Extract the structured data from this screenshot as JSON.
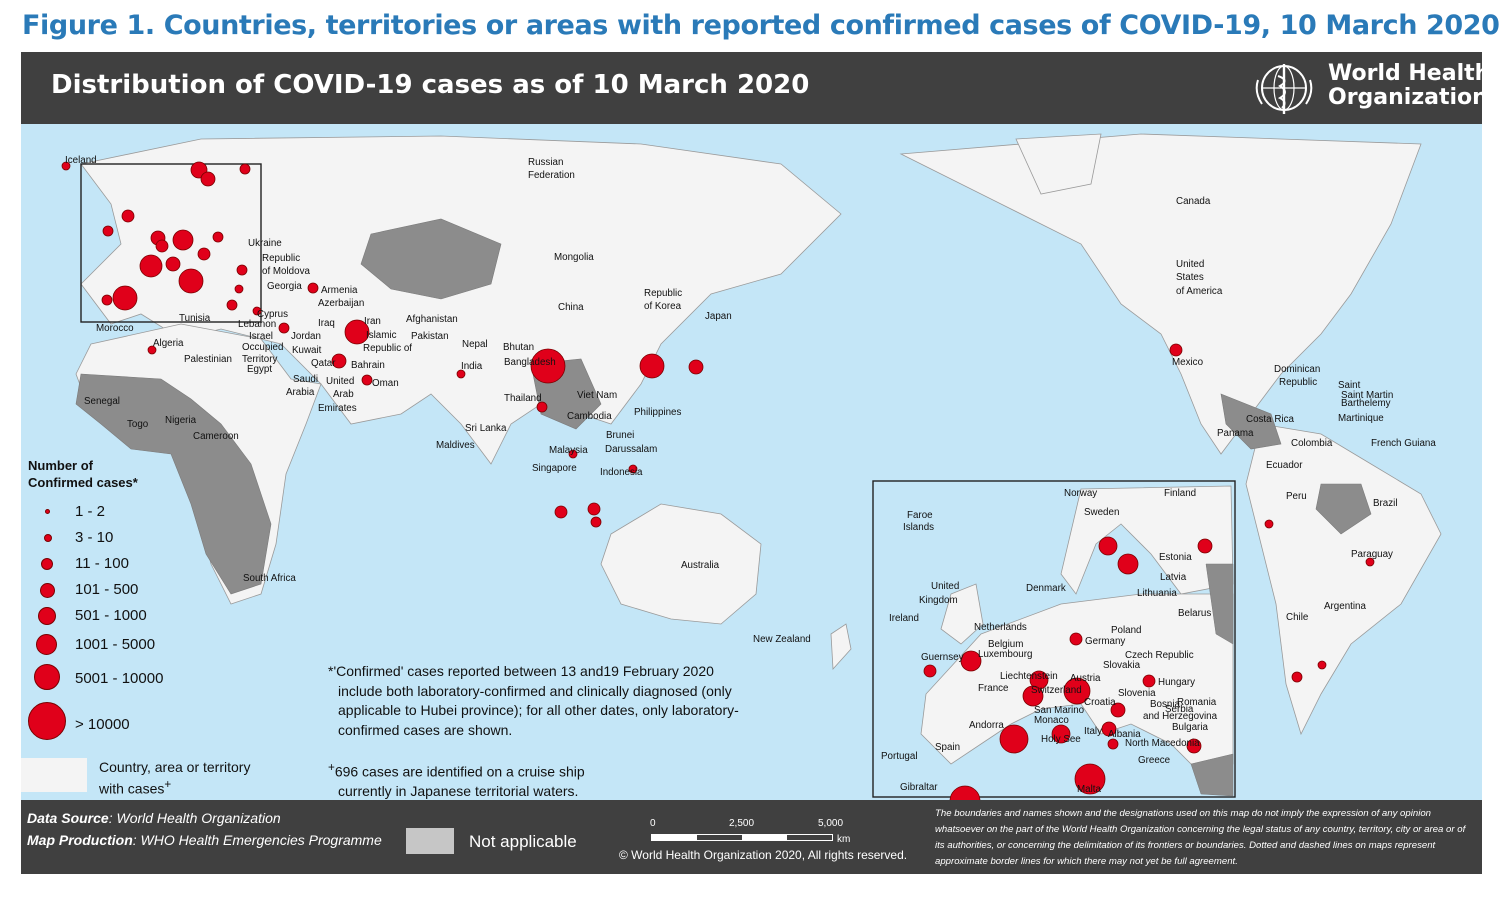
{
  "figure_title": "Figure 1. Countries, territories or areas with reported confirmed cases of COVID-19, 10 March 2020",
  "header": {
    "title": "Distribution of COVID-19 cases as of 10 March 2020",
    "org_line1": "World Health",
    "org_line2": "Organization",
    "logo_icon": "who-emblem-icon"
  },
  "colors": {
    "ocean": "#c4e6f7",
    "country": "#f4f4f4",
    "not_applicable": "#c6c6c6",
    "no_data": "#8c8c8c",
    "case_circle": "#e0001a",
    "bar": "#404040",
    "title_blue": "#2a7ab8"
  },
  "legend": {
    "title_line1": "Number of",
    "title_line2": "Confirmed cases*",
    "classes": [
      {
        "label": "1 - 2"
      },
      {
        "label": "3 - 10"
      },
      {
        "label": "11 - 100"
      },
      {
        "label": "101 - 500"
      },
      {
        "label": "501 - 1000"
      },
      {
        "label": "1001 - 5000"
      },
      {
        "label": "5001 - 10000"
      },
      {
        "label": "> 10000"
      }
    ],
    "country_line1": "Country, area or territory",
    "country_line2": "with cases",
    "country_sup": "+"
  },
  "notes": {
    "line1": "*'Confirmed' cases reported between 13 and19 February 2020",
    "line2": "include both laboratory-confirmed and clinically diagnosed (only",
    "line3": "applicable to Hubei province); for all other dates, only laboratory-",
    "line4": "confirmed cases are shown.",
    "cruise_sup": "+",
    "cruise1": "696 cases are identified on a cruise ship",
    "cruise2": "currently in Japanese territorial waters."
  },
  "footer": {
    "data_source_label": "Data Source",
    "data_source": ": World Health Organization",
    "map_production_label": "Map Production",
    "map_production": ": WHO Health Emergencies Programme",
    "not_applicable": "Not applicable",
    "scale_0": "0",
    "scale_1": "2,500",
    "scale_2": "5,000",
    "scale_unit": "km",
    "copyright": "© World Health Organization 2020, All rights reserved.",
    "disclaimer": "The boundaries and names shown and the designations used on this map do not imply the expression of any opinion whatsoever on the part of the World Health Organization concerning the legal status of any country, territory, city or area or of its authorities, or concerning the delimitation of its frontiers or boundaries. Dotted and dashed lines on maps represent approximate border lines for which there may not yet be full agreement."
  },
  "map_labels": {
    "iceland": "Iceland",
    "russia1": "Russian",
    "russia2": "Federation",
    "ukraine": "Ukraine",
    "moldova1": "Republic",
    "moldova2": "of Moldova",
    "georgia": "Georgia",
    "armenia": "Armenia",
    "azerbaijan": "Azerbaijan",
    "tunisia": "Tunisia",
    "cyprus": "Cyprus",
    "lebanon": "Lebanon",
    "israel": "Israel",
    "occupied": "Occupied",
    "palestinian": "Palestinian",
    "territory": "Territory",
    "egypt": "Egypt",
    "jordan": "Jordan",
    "kuwait": "Kuwait",
    "iraq": "Iraq",
    "iran": "Iran",
    "islamic": "Islamic",
    "republic_of": "Republic of",
    "qatar": "Qatar",
    "bahrain": "Bahrain",
    "saudi": "Saudi",
    "arabia": "Arabia",
    "uae1": "United",
    "uae2": "Arab",
    "uae3": "Emirates",
    "oman": "Oman",
    "afghanistan": "Afghanistan",
    "pakistan": "Pakistan",
    "nepal": "Nepal",
    "bhutan": "Bhutan",
    "india": "India",
    "bangladesh": "Bangladesh",
    "sri_lanka": "Sri Lanka",
    "maldives": "Maldives",
    "morocco": "Morocco",
    "algeria": "Algeria",
    "senegal": "Senegal",
    "togo": "Togo",
    "nigeria": "Nigeria",
    "cameroon": "Cameroon",
    "south_africa": "South Africa",
    "mongolia": "Mongolia",
    "china": "China",
    "korea1": "Republic",
    "korea2": "of Korea",
    "japan": "Japan",
    "thailand": "Thailand",
    "viet_nam": "Viet Nam",
    "cambodia": "Cambodia",
    "philippines": "Philippines",
    "brunei1": "Brunei",
    "brunei2": "Darussalam",
    "malaysia": "Malaysia",
    "singapore": "Singapore",
    "indonesia": "Indonesia",
    "australia": "Australia",
    "new_zealand": "New Zealand",
    "canada": "Canada",
    "us1": "United",
    "us2": "States",
    "us3": "of America",
    "mexico": "Mexico",
    "dominican1": "Dominican",
    "dominican2": "Republic",
    "saint_martin": "Saint Martin",
    "saint_barth1": "Saint",
    "saint_barth2": "Barthelemy",
    "martinique": "Martinique",
    "costa_rica": "Costa Rica",
    "panama": "Panama",
    "colombia": "Colombia",
    "french_guiana": "French Guiana",
    "ecuador": "Ecuador",
    "peru": "Peru",
    "brazil": "Brazil",
    "paraguay": "Paraguay",
    "chile": "Chile",
    "argentina": "Argentina"
  },
  "inset_labels": {
    "norway": "Norway",
    "finland": "Finland",
    "sweden": "Sweden",
    "faroe1": "Faroe",
    "faroe2": "Islands",
    "estonia": "Estonia",
    "latvia": "Latvia",
    "lithuania": "Lithuania",
    "denmark": "Denmark",
    "belarus": "Belarus",
    "uk1": "United",
    "uk2": "Kingdom",
    "ireland": "Ireland",
    "netherlands": "Netherlands",
    "belgium": "Belgium",
    "luxembourg": "Luxembourg",
    "guernsey": "Guernsey",
    "germany": "Germany",
    "poland": "Poland",
    "czech": "Czech Republic",
    "slovakia": "Slovakia",
    "liechtenstein": "Liechtenstein",
    "austria": "Austria",
    "switzerland": "Switzerland",
    "hungary": "Hungary",
    "slovenia": "Slovenia",
    "france": "France",
    "romania": "Romania",
    "croatia": "Croatia",
    "bosnia1": "Bosnia",
    "bosnia2": "and Herzegovina",
    "serbia": "Serbia",
    "san_marino": "San Marino",
    "monaco": "Monaco",
    "andorra": "Andorra",
    "bulgaria": "Bulgaria",
    "holy_see": "Holy See",
    "italy": "Italy",
    "albania": "Albania",
    "north_macedonia": "North Macedonia",
    "portugal": "Portugal",
    "spain": "Spain",
    "greece": "Greece",
    "gibraltar": "Gibraltar",
    "malta": "Malta"
  }
}
